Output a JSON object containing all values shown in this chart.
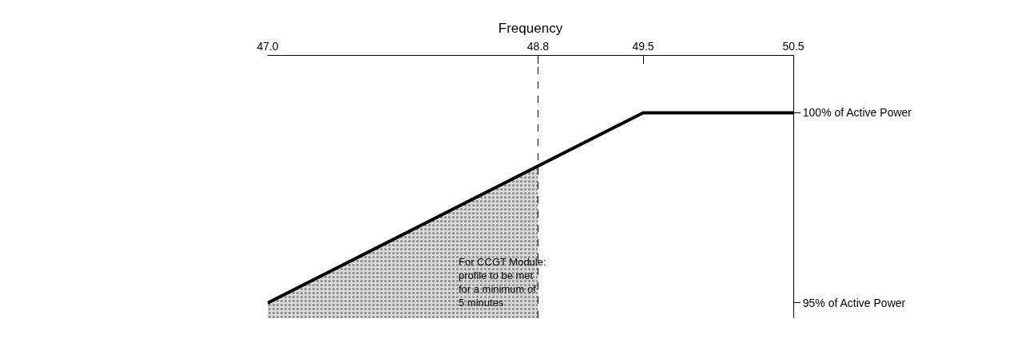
{
  "chart_data": {
    "type": "line",
    "xlabel": "Frequency",
    "xlim": [
      47.0,
      50.5
    ],
    "xticks": [
      {
        "value": 47,
        "label": "47.0"
      },
      {
        "value": 48.8,
        "label": "48.8"
      },
      {
        "value": 49.5,
        "label": "49.5"
      },
      {
        "value": 50.5,
        "label": "50.5"
      }
    ],
    "ylim": [
      94.6,
      101.5
    ],
    "yticks": [
      {
        "value": 100,
        "label": "100% of Active Power"
      },
      {
        "value": 95,
        "label": "95% of Active Power"
      }
    ],
    "series": [
      {
        "type": "area",
        "x": [
          47,
          48.8
        ],
        "values": [
          95,
          98.6
        ],
        "color": "#d9d9d9"
      },
      {
        "x": [
          47,
          49.5,
          50.5
        ],
        "values": [
          95,
          100,
          100
        ],
        "color": "#000000"
      }
    ],
    "ref_lines": [
      {
        "axis": "x",
        "value": 48.8,
        "line_style": "dashed",
        "color": "#000000"
      }
    ],
    "annotations": [
      "For CCGT Module: profile to be met for a minimum of 5 minutes"
    ]
  }
}
